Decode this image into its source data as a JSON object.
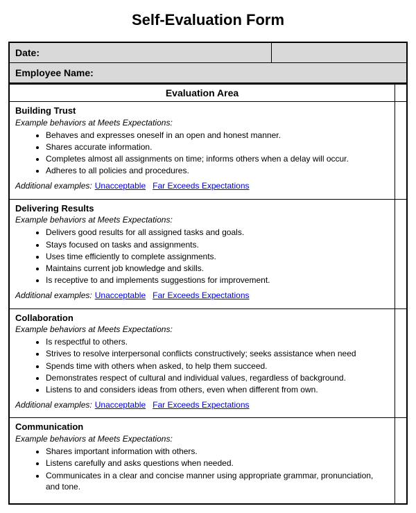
{
  "title": "Self-Evaluation Form",
  "header": {
    "date_label": "Date:",
    "employee_label": "Employee Name:"
  },
  "eval_area_label": "Evaluation Area",
  "subheading": "Example behaviors at Meets Expectations:",
  "additional_label": "Additional examples:",
  "link1": "Unacceptable",
  "link2": "Far Exceeds Expectations",
  "sections": [
    {
      "title": "Building Trust",
      "bullets": [
        "Behaves and expresses oneself in an open and honest manner.",
        "Shares accurate information.",
        "Completes almost all assignments on time; informs others when a delay will occur.",
        "Adheres to all policies and procedures."
      ],
      "show_links": true
    },
    {
      "title": "Delivering Results",
      "bullets": [
        "Delivers good results for all assigned tasks and goals.",
        "Stays focused on tasks and assignments.",
        "Uses time efficiently to complete assignments.",
        "Maintains current job knowledge and skills.",
        "Is receptive to and implements suggestions for improvement."
      ],
      "show_links": true
    },
    {
      "title": "Collaboration",
      "bullets": [
        "Is respectful to others.",
        "Strives to resolve interpersonal conflicts constructively; seeks assistance when need",
        "Spends time with others when asked, to help them succeed.",
        "Demonstrates respect of cultural and individual values, regardless of background.",
        "Listens to and considers ideas from others, even when different from own."
      ],
      "show_links": true
    },
    {
      "title": "Communication",
      "bullets": [
        "Shares important information with others.",
        "Listens carefully and asks questions when needed.",
        "Communicates in a clear and concise manner using appropriate grammar, pronunciation, and tone."
      ],
      "show_links": false
    }
  ]
}
